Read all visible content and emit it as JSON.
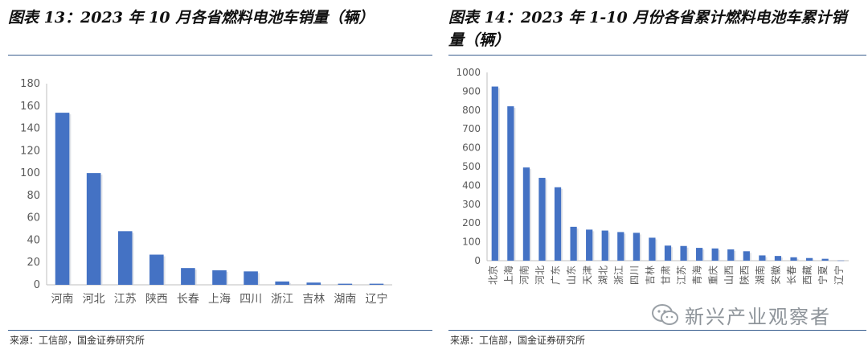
{
  "charts": {
    "left": {
      "title": "图表 13：2023 年 10 月各省燃料电池车销量（辆）",
      "source": "来源：工信部，国金证券研究所"
    },
    "right": {
      "title": "图表 14：2023 年 1-10 月份各省累计燃料电池车累计销量（辆）",
      "source": "来源：工信部，国金证券研究所"
    }
  },
  "watermark": {
    "text": "新兴产业观察者",
    "icon": "wechat-icon"
  },
  "colors": {
    "bar": "#4472C4",
    "axis": "#bfbfbf",
    "tick": "#595959",
    "rule": "#3a5f8f"
  },
  "chart_data": [
    {
      "type": "bar",
      "title": "图表 13：2023 年 10 月各省燃料电池车销量（辆）",
      "xlabel": "",
      "ylabel": "",
      "categories": [
        "河南",
        "河北",
        "江苏",
        "陕西",
        "长春",
        "上海",
        "四川",
        "浙江",
        "吉林",
        "湖南",
        "辽宁"
      ],
      "values": [
        154,
        100,
        48,
        27,
        15,
        13,
        12,
        3,
        2,
        1,
        1
      ],
      "ylim": [
        0,
        180
      ],
      "yticks": [
        0,
        20,
        40,
        60,
        80,
        100,
        120,
        140,
        160,
        180
      ],
      "grid": false,
      "legend": "none"
    },
    {
      "type": "bar",
      "title": "图表 14：2023 年 1-10 月份各省累计燃料电池车累计销量（辆）",
      "xlabel": "",
      "ylabel": "",
      "categories": [
        "北京",
        "上海",
        "河南",
        "河北",
        "广东",
        "山东",
        "天津",
        "湖北",
        "浙江",
        "四川",
        "吉林",
        "甘肃",
        "江苏",
        "青海",
        "重庆",
        "山西",
        "陕西",
        "湖南",
        "安徽",
        "长春",
        "西藏",
        "宁夏",
        "辽宁"
      ],
      "values": [
        925,
        820,
        495,
        440,
        390,
        180,
        165,
        160,
        152,
        148,
        122,
        80,
        78,
        68,
        65,
        60,
        50,
        28,
        25,
        18,
        14,
        10,
        1
      ],
      "ylim": [
        0,
        1000
      ],
      "yticks": [
        0,
        100,
        200,
        300,
        400,
        500,
        600,
        700,
        800,
        900,
        1000
      ],
      "grid": false,
      "legend": "none"
    }
  ]
}
